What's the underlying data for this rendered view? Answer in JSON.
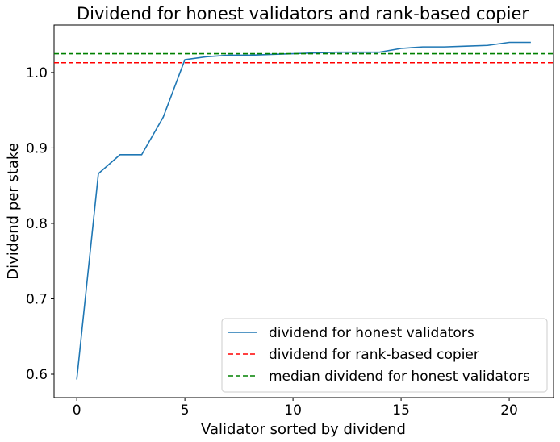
{
  "chart_data": {
    "type": "line",
    "title": "Dividend for honest validators and rank-based copier",
    "xlabel": "Validator sorted by dividend",
    "ylabel": "Dividend per stake",
    "xlim": [
      -1.05,
      22.05
    ],
    "ylim": [
      0.569,
      1.063
    ],
    "xticks": [
      0,
      5,
      10,
      15,
      20
    ],
    "xtick_labels": [
      "0",
      "5",
      "10",
      "15",
      "20"
    ],
    "yticks": [
      0.6,
      0.7,
      0.8,
      0.9,
      1.0
    ],
    "ytick_labels": [
      "0.6",
      "0.7",
      "0.8",
      "0.9",
      "1.0"
    ],
    "grid": false,
    "legend_position": "lower-right",
    "series": [
      {
        "name": "dividend for honest validators",
        "color": "#1f77b4",
        "style": "solid",
        "x": [
          0,
          1,
          2,
          3,
          4,
          5,
          6,
          7,
          8,
          9,
          10,
          11,
          12,
          13,
          14,
          15,
          16,
          17,
          18,
          19,
          20,
          21
        ],
        "y": [
          0.593,
          0.866,
          0.891,
          0.891,
          0.941,
          1.017,
          1.021,
          1.023,
          1.023,
          1.024,
          1.025,
          1.026,
          1.027,
          1.027,
          1.027,
          1.032,
          1.034,
          1.034,
          1.035,
          1.036,
          1.04,
          1.04
        ]
      },
      {
        "name": "dividend for rank-based copier",
        "color": "#ff0000",
        "style": "dashed",
        "hline": 1.013
      },
      {
        "name": "median dividend for honest validators",
        "color": "#008000",
        "style": "dashed",
        "hline": 1.025
      }
    ]
  }
}
